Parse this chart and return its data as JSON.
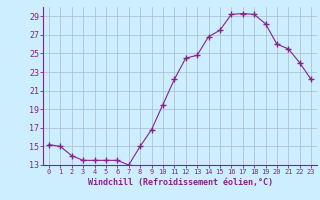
{
  "x": [
    0,
    1,
    2,
    3,
    4,
    5,
    6,
    7,
    8,
    9,
    10,
    11,
    12,
    13,
    14,
    15,
    16,
    17,
    18,
    19,
    20,
    21,
    22,
    23
  ],
  "y": [
    15.2,
    15.0,
    14.0,
    13.5,
    13.5,
    13.5,
    13.5,
    13.0,
    15.0,
    16.8,
    19.5,
    22.2,
    24.5,
    24.8,
    26.8,
    27.5,
    29.2,
    29.3,
    29.2,
    28.2,
    26.0,
    25.5,
    24.0,
    22.2
  ],
  "ylim": [
    13,
    30
  ],
  "yticks": [
    13,
    15,
    17,
    19,
    21,
    23,
    25,
    27,
    29
  ],
  "xtick_labels": [
    "0",
    "1",
    "2",
    "3",
    "4",
    "5",
    "6",
    "7",
    "8",
    "9",
    "10",
    "11",
    "12",
    "13",
    "14",
    "15",
    "16",
    "17",
    "18",
    "19",
    "20",
    "21",
    "22",
    "23"
  ],
  "xlabel": "Windchill (Refroidissement éolien,°C)",
  "line_color": "#882288",
  "marker_color": "#882288",
  "bg_color": "#cceeff",
  "grid_color": "#aabbcc",
  "axis_color": "#882288",
  "tick_color": "#882288",
  "label_color": "#882288"
}
